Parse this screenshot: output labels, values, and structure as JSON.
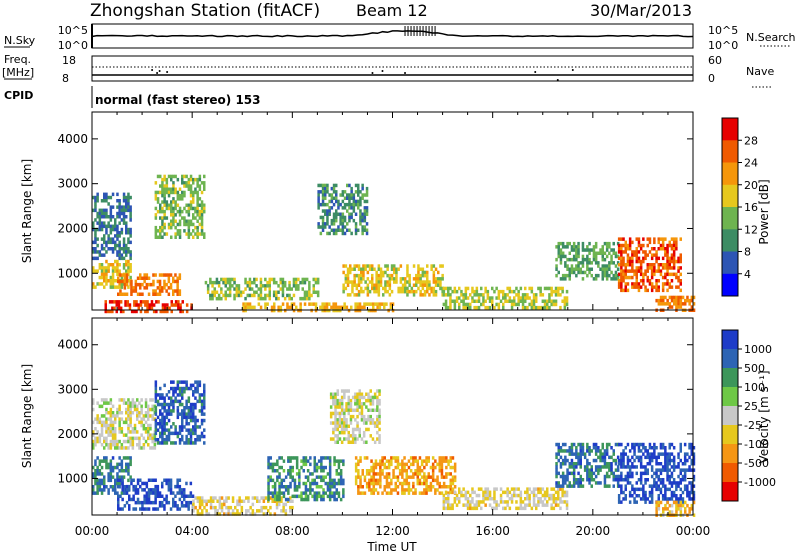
{
  "header": {
    "station": "Zhongshan Station (fitACF)",
    "beam": "Beam 12",
    "date": "30/Mar/2013"
  },
  "status_panels": {
    "nsky_label": "N.Sky",
    "nsky_ticks": [
      "10^5",
      "10^0"
    ],
    "nsearch_label": "N.Search",
    "nsearch_ticks": [
      "10^5",
      "10^0"
    ],
    "freq_label": "Freq.",
    "freq_unit": "[MHz]",
    "freq_ticks": [
      "18",
      "8"
    ],
    "nave_label": "Nave",
    "nave_ticks": [
      "60",
      "0"
    ],
    "cpid_label": "CPID",
    "cpid_text": "normal (fast stereo) 153"
  },
  "axes": {
    "ylabel": "Slant Range [km]",
    "yticks": [
      "1000",
      "2000",
      "3000",
      "4000"
    ],
    "xlabel": "Time UT",
    "xticks": [
      "00:00",
      "04:00",
      "08:00",
      "12:00",
      "16:00",
      "20:00",
      "00:00"
    ]
  },
  "colors": {
    "power_scale": [
      "#0000ff",
      "#2d55b4",
      "#3c8c64",
      "#6eb450",
      "#e6c81e",
      "#f5960a",
      "#f05a00",
      "#e60000"
    ],
    "velocity_scale": [
      "#1e3cc8",
      "#2d64b4",
      "#3c965a",
      "#6ec846",
      "#c8c8c8",
      "#e6c81e",
      "#f59614",
      "#f05a00",
      "#e60000"
    ]
  },
  "chart_data": [
    {
      "type": "heatmap",
      "name": "power",
      "x_range": [
        "00:00",
        "24:00"
      ],
      "ylim": [
        180,
        4600
      ],
      "colorbar": {
        "label": "Power [dB]",
        "ticks": [
          "4",
          "8",
          "12",
          "16",
          "20",
          "24",
          "28"
        ],
        "range": [
          0,
          32
        ]
      },
      "regions": [
        {
          "t": [
            0.0,
            1.5
          ],
          "r": [
            1300,
            2800
          ],
          "v": 8
        },
        {
          "t": [
            0.0,
            1.5
          ],
          "r": [
            700,
            1300
          ],
          "v": 18
        },
        {
          "t": [
            1.0,
            3.5
          ],
          "r": [
            500,
            1000
          ],
          "v": 24
        },
        {
          "t": [
            0.5,
            4.0
          ],
          "r": [
            180,
            400
          ],
          "v": 28
        },
        {
          "t": [
            2.5,
            4.5
          ],
          "r": [
            1800,
            3200
          ],
          "v": 14
        },
        {
          "t": [
            4.5,
            9.0
          ],
          "r": [
            400,
            900
          ],
          "v": 14
        },
        {
          "t": [
            6.0,
            12.0
          ],
          "r": [
            180,
            350
          ],
          "v": 20
        },
        {
          "t": [
            9.0,
            11.0
          ],
          "r": [
            1900,
            3000
          ],
          "v": 10
        },
        {
          "t": [
            10.0,
            14.0
          ],
          "r": [
            500,
            1200
          ],
          "v": 18
        },
        {
          "t": [
            14.0,
            19.0
          ],
          "r": [
            200,
            700
          ],
          "v": 16
        },
        {
          "t": [
            18.5,
            21.0
          ],
          "r": [
            900,
            1700
          ],
          "v": 12
        },
        {
          "t": [
            21.0,
            23.5
          ],
          "r": [
            600,
            1800
          ],
          "v": 26
        },
        {
          "t": [
            22.5,
            24.0
          ],
          "r": [
            200,
            500
          ],
          "v": 24
        }
      ]
    },
    {
      "type": "heatmap",
      "name": "velocity",
      "x_range": [
        "00:00",
        "24:00"
      ],
      "ylim": [
        180,
        4600
      ],
      "colorbar": {
        "label": "Velocity [m s⁻¹]",
        "ticks": [
          "1000",
          "500",
          "100",
          "25",
          "-25",
          "-100",
          "-500",
          "-1000"
        ],
        "range": [
          -1000,
          1000
        ]
      },
      "regions": [
        {
          "t": [
            0.0,
            2.5
          ],
          "r": [
            1700,
            2800
          ],
          "v": 0
        },
        {
          "t": [
            0.0,
            1.5
          ],
          "r": [
            700,
            1500
          ],
          "v": 600
        },
        {
          "t": [
            1.0,
            4.0
          ],
          "r": [
            300,
            1000
          ],
          "v": 800
        },
        {
          "t": [
            2.5,
            4.5
          ],
          "r": [
            1800,
            3200
          ],
          "v": 700
        },
        {
          "t": [
            4.0,
            8.0
          ],
          "r": [
            200,
            600
          ],
          "v": -150
        },
        {
          "t": [
            7.0,
            10.0
          ],
          "r": [
            500,
            1500
          ],
          "v": 500
        },
        {
          "t": [
            9.5,
            11.5
          ],
          "r": [
            1800,
            3000
          ],
          "v": -30
        },
        {
          "t": [
            10.5,
            14.5
          ],
          "r": [
            700,
            1500
          ],
          "v": -400
        },
        {
          "t": [
            14.0,
            19.0
          ],
          "r": [
            300,
            800
          ],
          "v": -120
        },
        {
          "t": [
            18.5,
            21.0
          ],
          "r": [
            800,
            1800
          ],
          "v": 600
        },
        {
          "t": [
            21.0,
            24.0
          ],
          "r": [
            500,
            1800
          ],
          "v": 800
        },
        {
          "t": [
            22.5,
            24.0
          ],
          "r": [
            200,
            500
          ],
          "v": -300
        }
      ]
    }
  ]
}
